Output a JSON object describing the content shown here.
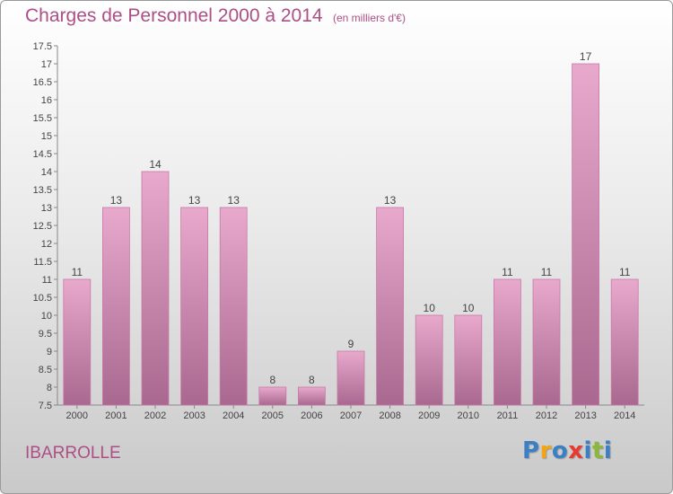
{
  "header": {
    "title": "Charges de Personnel 2000 à 2014",
    "subtitle": "(en milliers d'€)"
  },
  "footer": {
    "commune": "IBARROLLE",
    "logo": {
      "letters": [
        "P",
        "r",
        "o",
        "x",
        "i",
        "t",
        "i"
      ],
      "colors": [
        "#3b7fc4",
        "#f2a516",
        "#3b7fc4",
        "#e83a2e",
        "#3b7fc4",
        "#89b83a",
        "#3b7fc4"
      ]
    }
  },
  "chart_data": {
    "type": "bar",
    "title": "Charges de Personnel 2000 à 2014",
    "subtitle": "(en milliers d'€)",
    "categories": [
      "2000",
      "2001",
      "2002",
      "2003",
      "2004",
      "2005",
      "2006",
      "2007",
      "2008",
      "2009",
      "2010",
      "2011",
      "2012",
      "2013",
      "2014"
    ],
    "values": [
      11,
      13,
      14,
      13,
      13,
      8,
      8,
      9,
      13,
      10,
      10,
      11,
      11,
      17,
      11
    ],
    "value_labels": [
      "11",
      "13",
      "14",
      "13",
      "13",
      "8",
      "8",
      "9",
      "13",
      "10",
      "10",
      "11",
      "11",
      "17",
      "11"
    ],
    "ylim": [
      7.5,
      17.5
    ],
    "yticks": [
      7.5,
      8,
      8.5,
      9,
      9.5,
      10,
      10.5,
      11,
      11.5,
      12,
      12.5,
      13,
      13.5,
      14,
      14.5,
      15,
      15.5,
      16,
      16.5,
      17,
      17.5
    ],
    "ytick_labels": [
      "7.5",
      "8",
      "8.5",
      "9",
      "9.5",
      "10",
      "10.5",
      "11",
      "11.5",
      "12",
      "12.5",
      "13",
      "13.5",
      "14",
      "14.5",
      "15",
      "15.5",
      "16",
      "16.5",
      "17",
      "17.5"
    ],
    "xlabel": "",
    "ylabel": "",
    "grid": false,
    "colors": {
      "bar_top": "#e8a9cd",
      "bar_bottom": "#a9688f",
      "bar_edge": "#c77aa6",
      "title": "#ad4f86"
    }
  }
}
